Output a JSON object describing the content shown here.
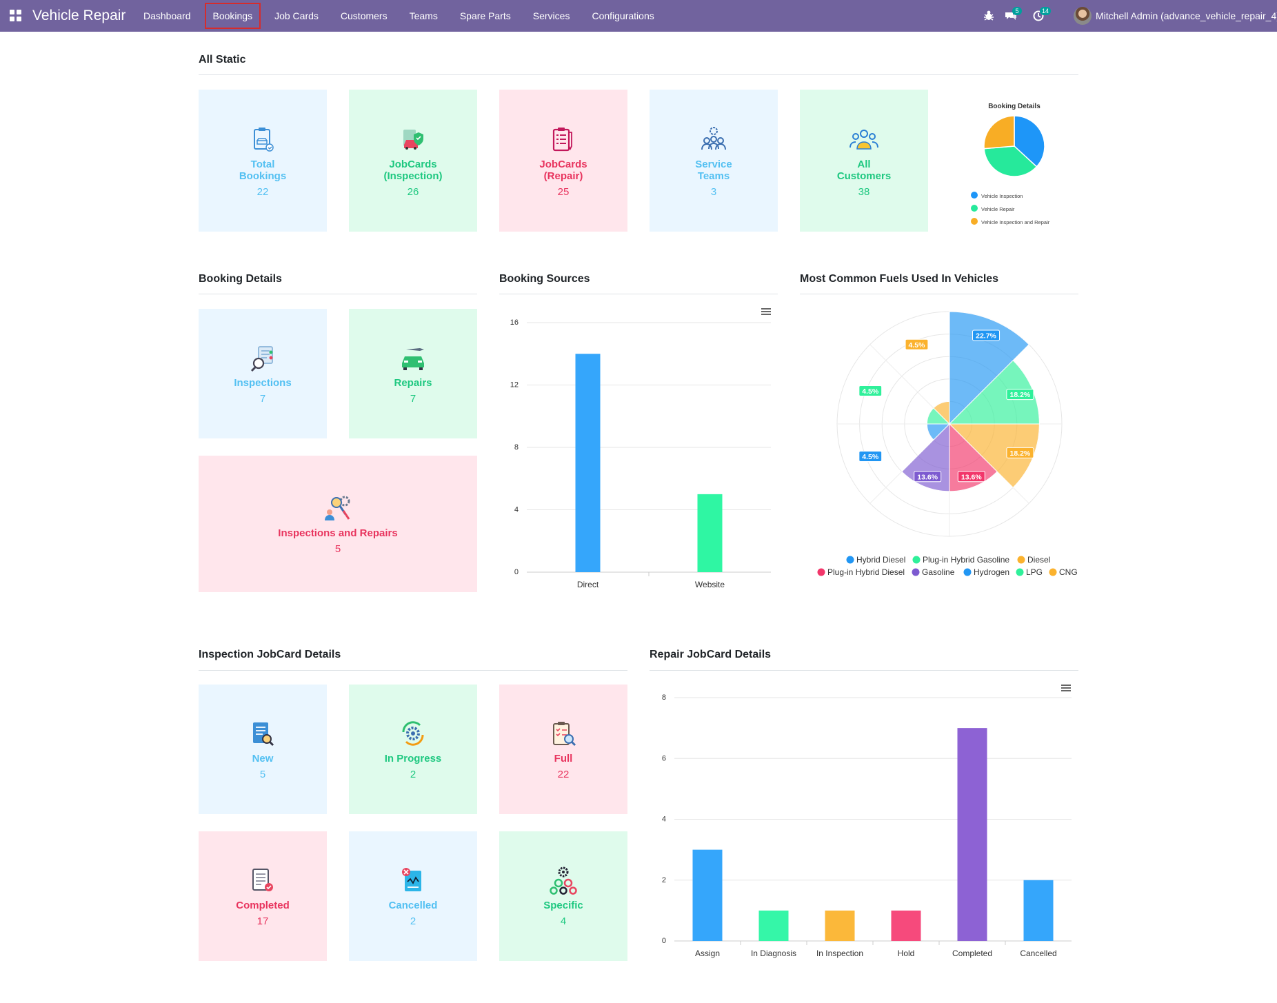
{
  "nav": {
    "app_title": "Vehicle Repair",
    "menu": [
      "Dashboard",
      "Bookings",
      "Job Cards",
      "Customers",
      "Teams",
      "Spare Parts",
      "Services",
      "Configurations"
    ],
    "active_menu": "Bookings",
    "messages_count": "5",
    "activities_count": "14",
    "user": "Mitchell Admin (advance_vehicle_repair_4)"
  },
  "all_static": {
    "title": "All Static",
    "cards": [
      {
        "label_1": "Total",
        "label_2": "Bookings",
        "value": "22",
        "color": "blue",
        "icon": "clipboard-car-icon"
      },
      {
        "label_1": "JobCards",
        "label_2": "(Inspection)",
        "value": "26",
        "color": "green",
        "icon": "car-shield-icon"
      },
      {
        "label_1": "JobCards",
        "label_2": "(Repair)",
        "value": "25",
        "color": "pink",
        "icon": "checklist-pen-icon"
      },
      {
        "label_1": "Service",
        "label_2": "Teams",
        "value": "3",
        "color": "blue",
        "icon": "team-gear-icon"
      },
      {
        "label_1": "All",
        "label_2": "Customers",
        "value": "38",
        "color": "green",
        "icon": "customers-group-icon"
      }
    ],
    "pie": {
      "title": "Booking Details",
      "legend": [
        "Vehicle Inspection",
        "Vehicle Repair",
        "Vehicle Inspection and Repair"
      ],
      "colors": [
        "#1e96f8",
        "#26e99b",
        "#f8ad25"
      ]
    }
  },
  "booking_details": {
    "title": "Booking Details",
    "cards": [
      {
        "label": "Inspections",
        "value": "7",
        "color": "blue",
        "icon": "magnifier-checklist-icon"
      },
      {
        "label": "Repairs",
        "value": "7",
        "color": "green",
        "icon": "car-wrench-icon"
      },
      {
        "label": "Inspections and Repairs",
        "value": "5",
        "color": "pink",
        "icon": "inspection-repair-tools-icon"
      }
    ]
  },
  "booking_sources": {
    "title": "Booking Sources"
  },
  "fuels": {
    "title": "Most Common Fuels Used In Vehicles",
    "legend_row1": [
      "Hybrid Diesel",
      "Plug-in Hybrid Gasoline",
      "Diesel"
    ],
    "legend_row2": [
      "Plug-in Hybrid Diesel",
      "Gasoline",
      "Hydrogen",
      "LPG",
      "CNG"
    ]
  },
  "inspection_jobcards": {
    "title": "Inspection JobCard Details",
    "cards": [
      {
        "label": "New",
        "value": "5",
        "color": "blue",
        "icon": "new-document-icon"
      },
      {
        "label": "In Progress",
        "value": "2",
        "color": "green",
        "icon": "progress-gear-icon"
      },
      {
        "label": "Full",
        "value": "22",
        "color": "pink",
        "icon": "full-inspection-icon"
      },
      {
        "label": "Completed",
        "value": "17",
        "color": "pink",
        "icon": "completed-document-icon"
      },
      {
        "label": "Cancelled",
        "value": "2",
        "color": "blue",
        "icon": "cancelled-document-icon"
      },
      {
        "label": "Specific",
        "value": "4",
        "color": "green",
        "icon": "specific-gears-icon"
      }
    ]
  },
  "repair_jobcards": {
    "title": "Repair JobCard Details"
  },
  "chart_data": [
    {
      "type": "pie",
      "title": "Booking Details",
      "categories": [
        "Vehicle Inspection",
        "Vehicle Repair",
        "Vehicle Inspection and Repair"
      ],
      "values": [
        7,
        7,
        5
      ],
      "colors": [
        "#1e96f8",
        "#26e99b",
        "#f8ad25"
      ]
    },
    {
      "type": "bar",
      "title": "Booking Sources",
      "categories": [
        "Direct",
        "Website"
      ],
      "values": [
        14,
        5
      ],
      "colors": [
        "#35a6fb",
        "#2ff6a3"
      ],
      "ylim": [
        0,
        16
      ],
      "yticks": [
        0,
        4,
        8,
        12,
        16
      ]
    },
    {
      "type": "pie",
      "subtype": "polar-area",
      "title": "Most Common Fuels Used In Vehicles",
      "categories": [
        "Hybrid Diesel",
        "Plug-in Hybrid Gasoline",
        "Diesel",
        "Plug-in Hybrid Diesel",
        "Gasoline",
        "Hydrogen",
        "LPG",
        "CNG"
      ],
      "values": [
        5,
        4,
        4,
        3,
        3,
        1,
        1,
        1
      ],
      "percent_labels": [
        "22.7%",
        "18.2%",
        "18.2%",
        "13.6%",
        "13.6%",
        "4.5%",
        "4.5%",
        "4.5%"
      ],
      "colors": [
        "#2196f3",
        "#2ff09a",
        "#fbb22e",
        "#f2366a",
        "#7d5ad0",
        "#2196f3",
        "#2ff09a",
        "#fbb22e"
      ]
    },
    {
      "type": "bar",
      "title": "Repair JobCard Details",
      "categories": [
        "Assign",
        "In Diagnosis",
        "In Inspection",
        "Hold",
        "Completed",
        "Cancelled"
      ],
      "values": [
        3,
        1,
        1,
        1,
        7,
        2
      ],
      "colors": [
        "#35a6fb",
        "#35f6a8",
        "#fbb83a",
        "#f64a7c",
        "#8d62d4",
        "#35a6fb"
      ],
      "ylim": [
        0,
        8
      ],
      "yticks": [
        0,
        2,
        4,
        6,
        8
      ]
    }
  ]
}
